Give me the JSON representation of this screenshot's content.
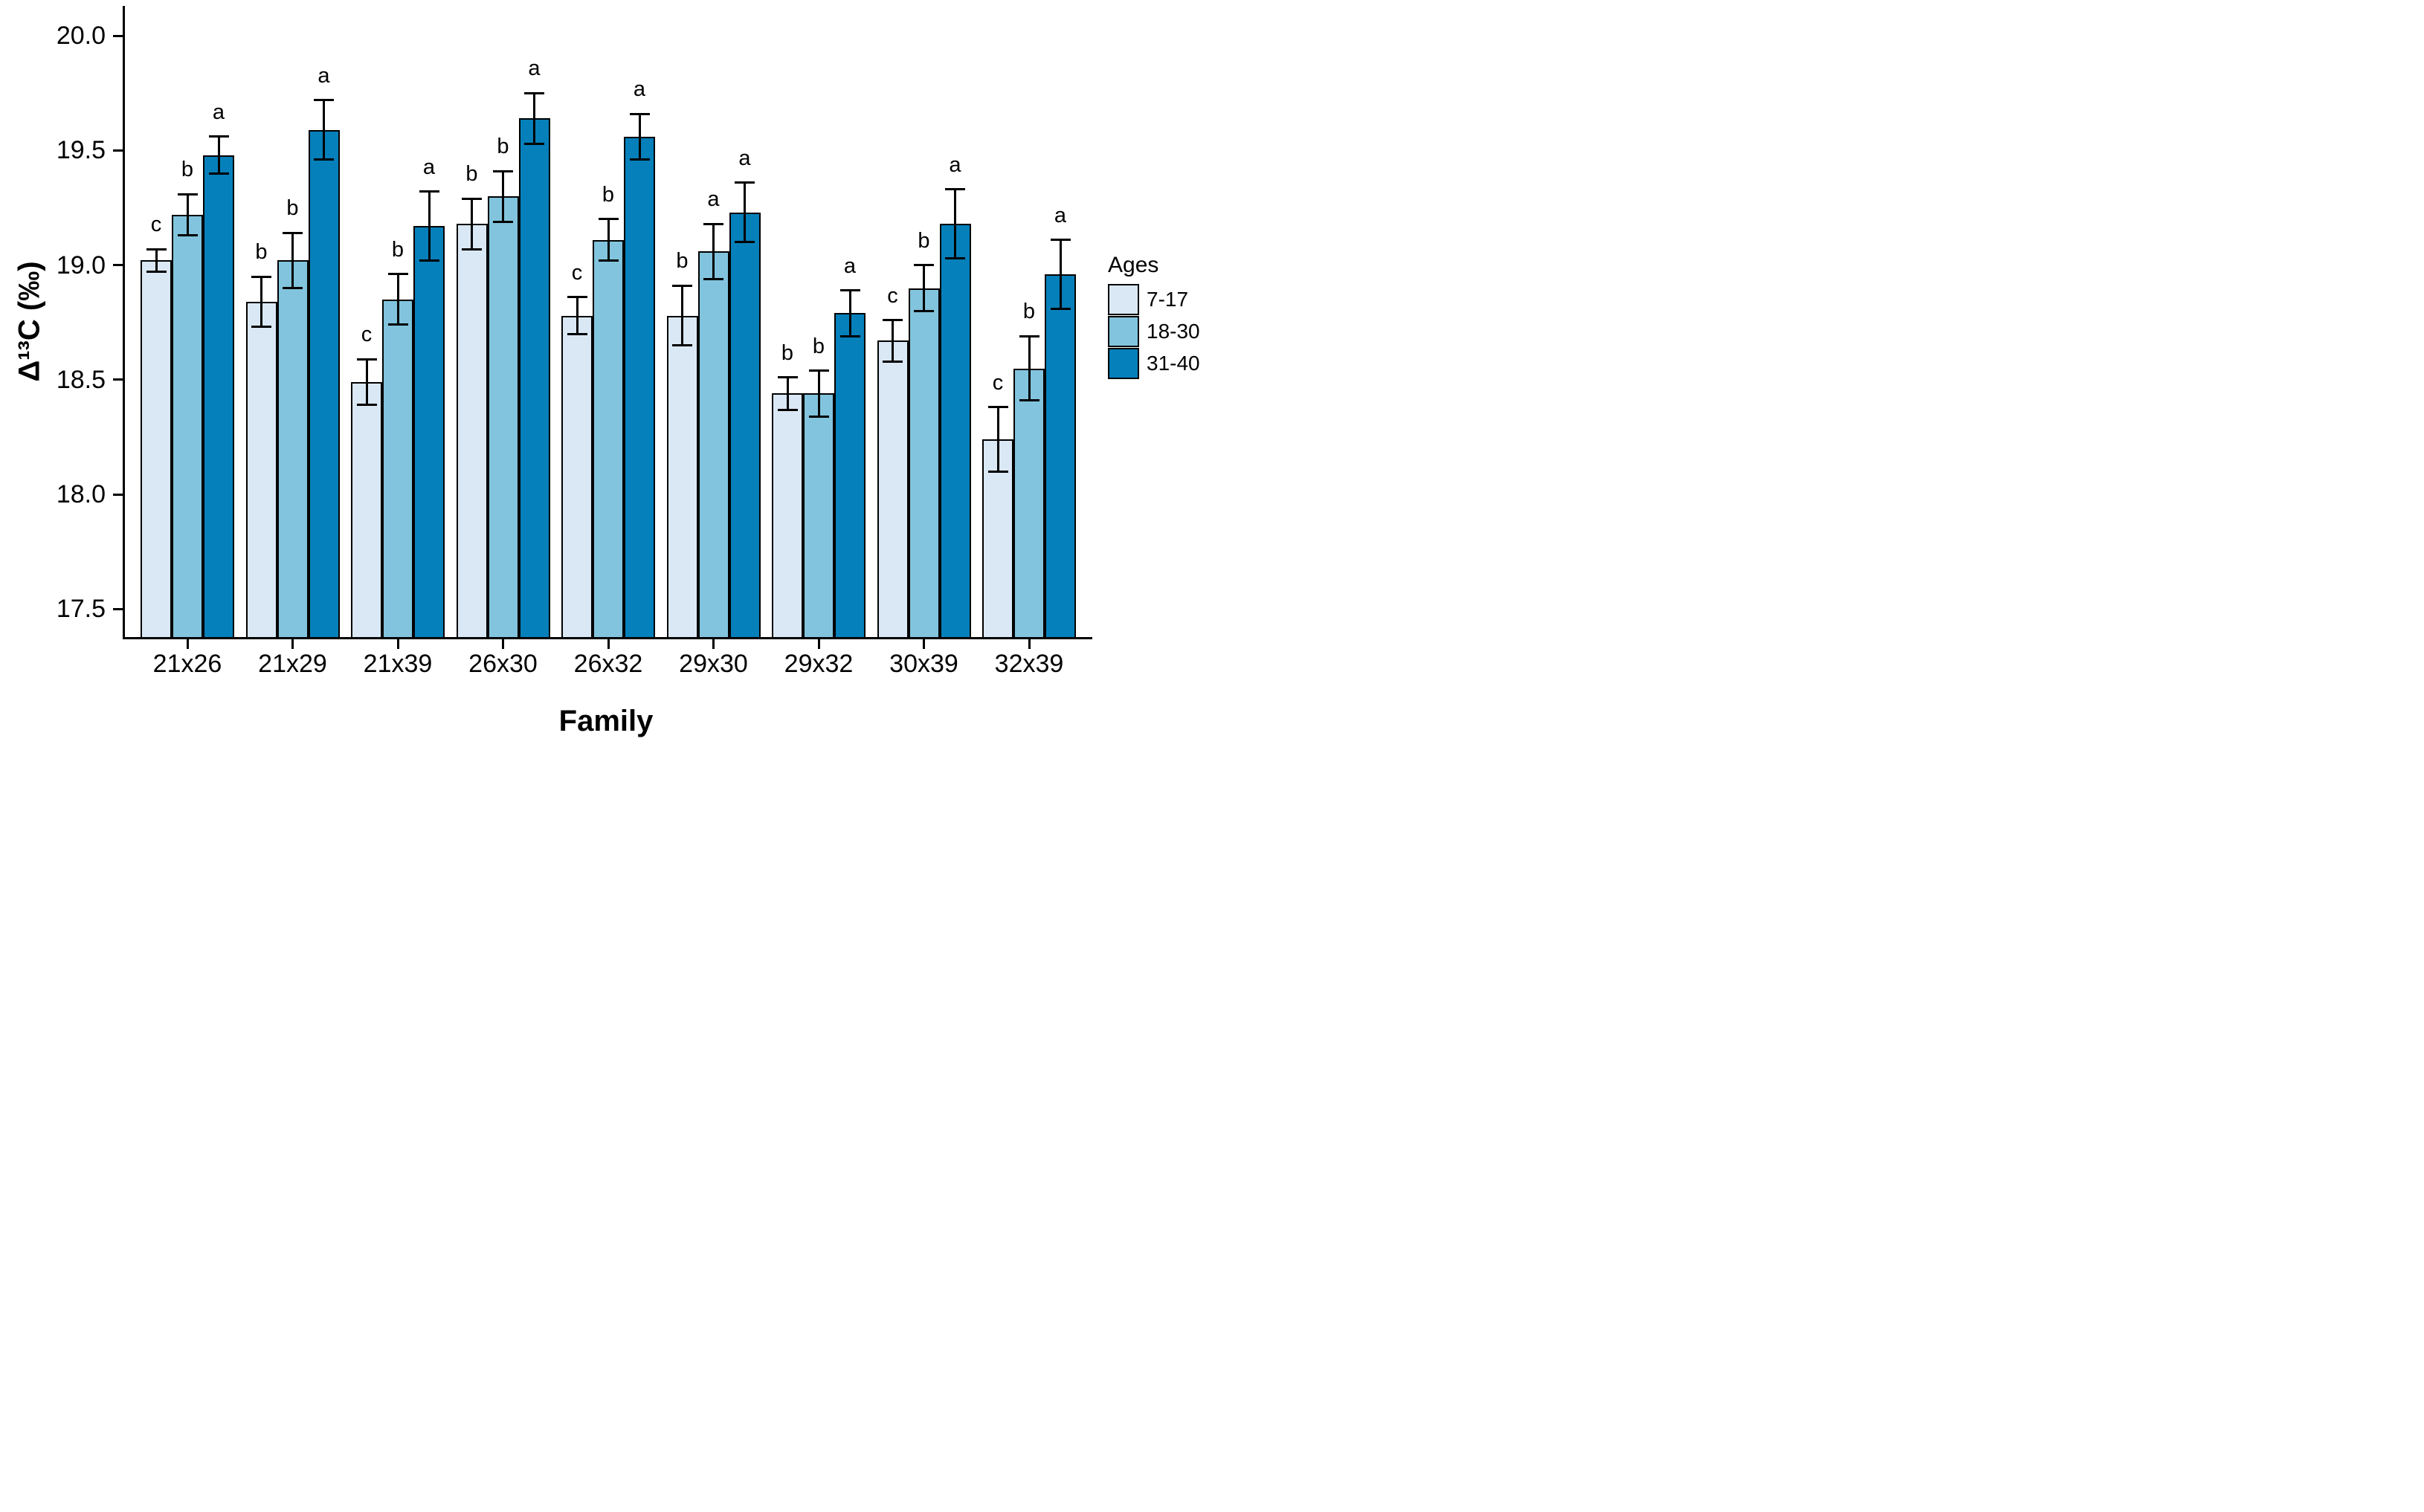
{
  "chart_data": {
    "type": "bar",
    "title": "",
    "xlabel": "Family",
    "ylabel": "Δ¹³C (‰)",
    "categories": [
      "21x26",
      "21x29",
      "21x39",
      "26x30",
      "26x32",
      "29x30",
      "29x32",
      "30x39",
      "32x39"
    ],
    "series": [
      {
        "name": "7-17",
        "color": "#DAE8F5",
        "values": [
          19.02,
          18.84,
          18.49,
          19.18,
          18.78,
          18.78,
          18.44,
          18.67,
          18.24
        ],
        "errors": [
          0.05,
          0.11,
          0.1,
          0.11,
          0.08,
          0.13,
          0.07,
          0.09,
          0.14
        ],
        "letters": [
          "c",
          "b",
          "c",
          "b",
          "c",
          "b",
          "b",
          "c",
          "c"
        ]
      },
      {
        "name": "18-30",
        "color": "#82C4DD",
        "values": [
          19.22,
          19.02,
          18.85,
          19.3,
          19.11,
          19.06,
          18.44,
          18.9,
          18.55
        ],
        "errors": [
          0.09,
          0.12,
          0.11,
          0.11,
          0.09,
          0.12,
          0.1,
          0.1,
          0.14
        ],
        "letters": [
          "b",
          "b",
          "b",
          "b",
          "b",
          "a",
          "b",
          "b",
          "b"
        ]
      },
      {
        "name": "31-40",
        "color": "#0680BA",
        "values": [
          19.48,
          19.59,
          19.17,
          19.64,
          19.56,
          19.23,
          18.79,
          19.18,
          18.96
        ],
        "errors": [
          0.08,
          0.13,
          0.15,
          0.11,
          0.1,
          0.13,
          0.1,
          0.15,
          0.15
        ],
        "letters": [
          "a",
          "a",
          "a",
          "a",
          "a",
          "a",
          "a",
          "a",
          "a"
        ]
      }
    ],
    "ylim": [
      17.38,
      20.13
    ],
    "yticks": [
      "17.5",
      "18.0",
      "18.5",
      "19.0",
      "19.5",
      "20.0"
    ],
    "legend_title": "Ages",
    "legend_position": "right",
    "grid": false,
    "error_bars": true,
    "axis_color": "#000000",
    "background_color": "#ffffff"
  }
}
